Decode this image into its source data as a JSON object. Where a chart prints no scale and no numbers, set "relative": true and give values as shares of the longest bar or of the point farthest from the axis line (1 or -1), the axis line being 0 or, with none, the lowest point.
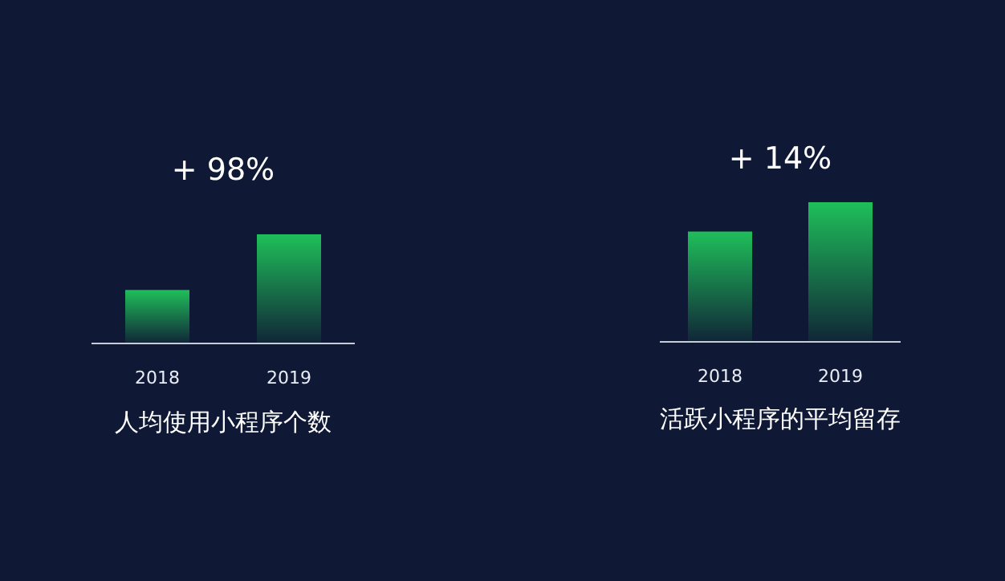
{
  "chart_data": [
    {
      "type": "bar",
      "title": "人均使用小程序个数",
      "annotations": [
        "+ 98%"
      ],
      "categories": [
        "2018",
        "2019"
      ],
      "values": [
        0.49,
        1
      ],
      "relative": true,
      "color": "#1fbf5a"
    },
    {
      "type": "bar",
      "title": "活跃小程序的平均留存",
      "annotations": [
        "+ 14%"
      ],
      "categories": [
        "2018",
        "2019"
      ],
      "values": [
        0.79,
        1
      ],
      "relative": true,
      "color": "#1fbf5a"
    }
  ]
}
